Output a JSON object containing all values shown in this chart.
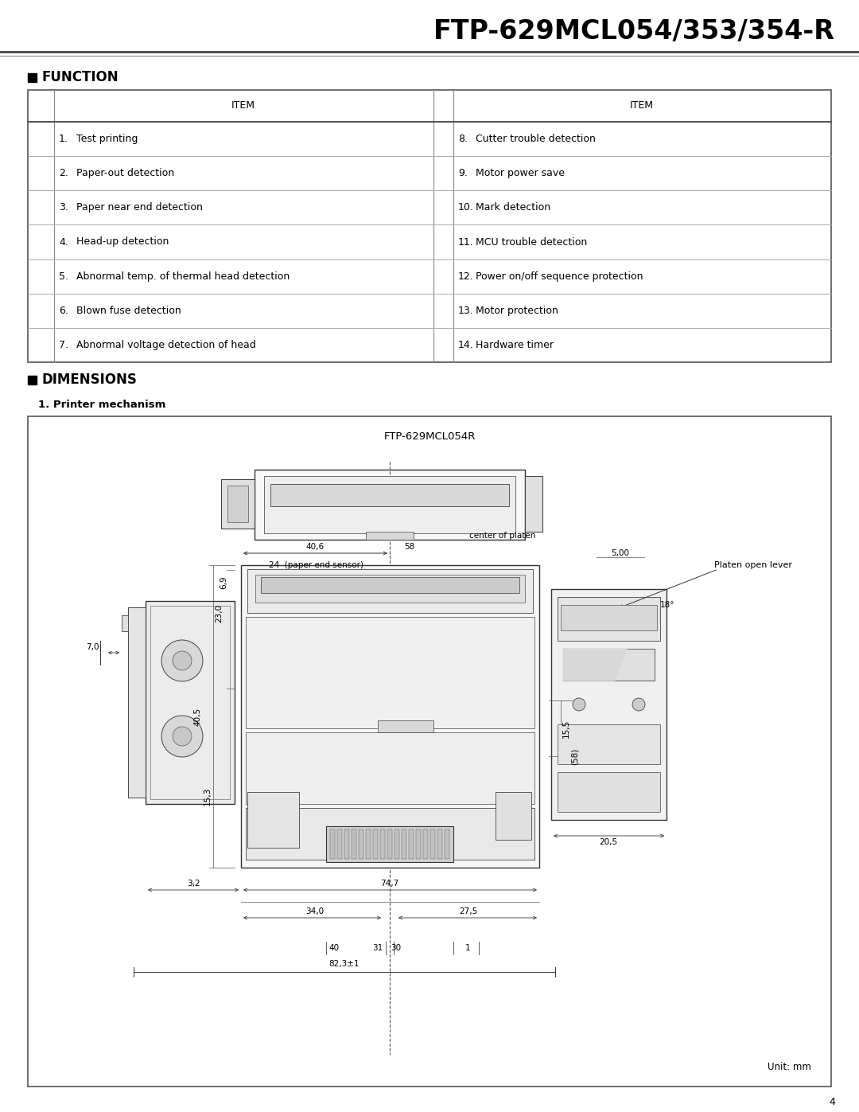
{
  "page_title": "FTP-629MCL054/353/354-R",
  "section1_title": "FUNCTION",
  "section2_title": "DIMENSIONS",
  "subsection_title": "1. Printer mechanism",
  "diagram_title": "FTP-629MCL054R",
  "unit_label": "Unit: mm",
  "page_number": "4",
  "bg_color": "#ffffff",
  "table_items_left": [
    [
      "1.",
      "Test printing"
    ],
    [
      "2.",
      "Paper-out detection"
    ],
    [
      "3.",
      "Paper near end detection"
    ],
    [
      "4.",
      "Head-up detection"
    ],
    [
      "5.",
      "Abnormal temp. of thermal head detection"
    ],
    [
      "6.",
      "Blown fuse detection"
    ],
    [
      "7.",
      "Abnormal voltage detection of head"
    ]
  ],
  "table_items_right": [
    [
      "8.",
      "Cutter trouble detection"
    ],
    [
      "9.",
      "Motor power save"
    ],
    [
      "10.",
      "Mark detection"
    ],
    [
      "11.",
      "MCU trouble detection"
    ],
    [
      "12.",
      "Power on/off sequence protection"
    ],
    [
      "13.",
      "Motor protection"
    ],
    [
      "14.",
      "Hardware timer"
    ]
  ]
}
